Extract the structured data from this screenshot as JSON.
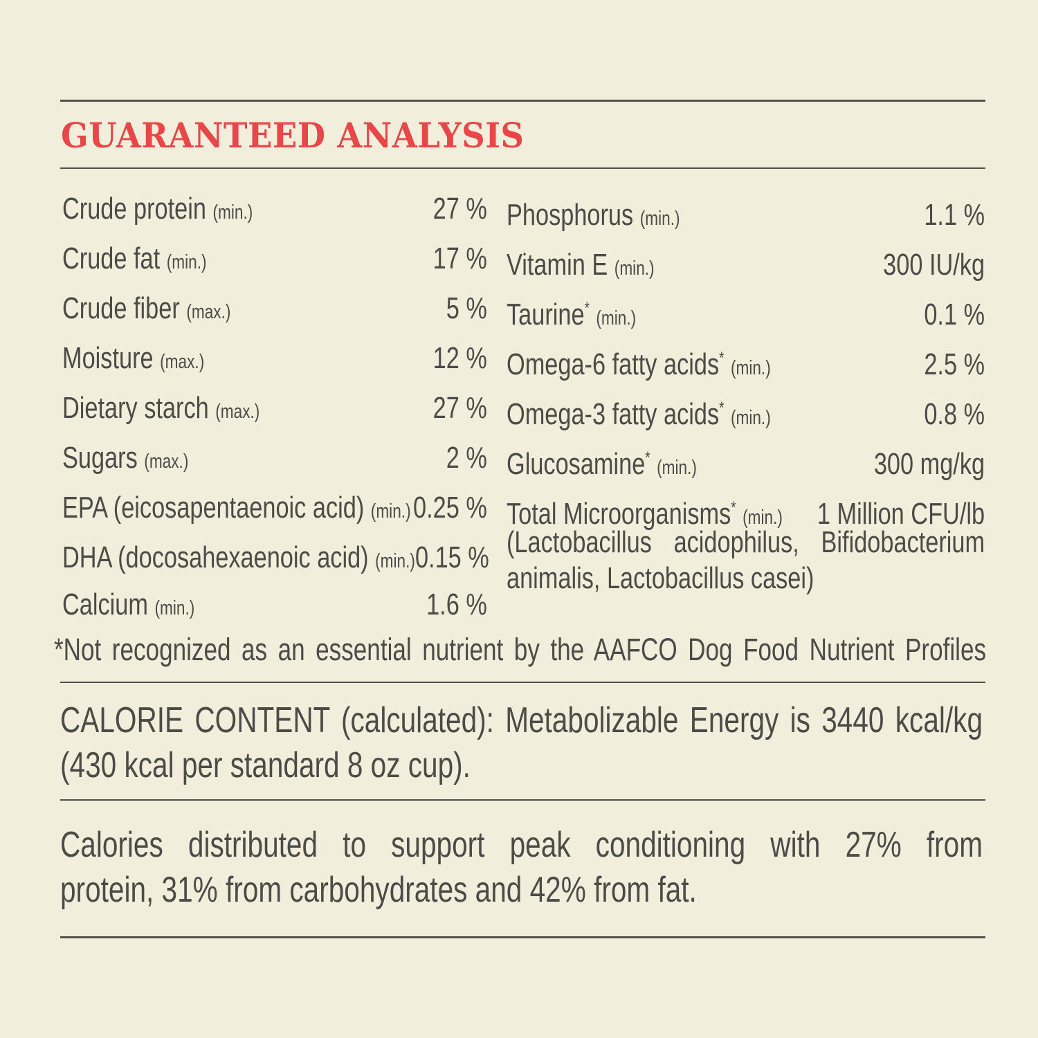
{
  "title": "GUARANTEED ANALYSIS",
  "colors": {
    "background": "#f1efdc",
    "title": "#e8474a",
    "text": "#4b4b48",
    "rule": "#4f504a"
  },
  "left_rows": [
    {
      "name": "Crude protein",
      "qualifier": "(min.)",
      "value": "27 %"
    },
    {
      "name": "Crude fat",
      "qualifier": "(min.)",
      "value": "17 %"
    },
    {
      "name": "Crude fiber",
      "qualifier": "(max.)",
      "value": "5 %"
    },
    {
      "name": "Moisture",
      "qualifier": "(max.)",
      "value": "12 %"
    },
    {
      "name": "Dietary starch",
      "qualifier": "(max.)",
      "value": "27 %"
    },
    {
      "name": "Sugars",
      "qualifier": "(max.)",
      "value": "2 %"
    },
    {
      "name": "EPA (eicosapentaenoic acid)",
      "qualifier": "(min.)",
      "value": "0.25 %"
    },
    {
      "name": "DHA (docosahexaenoic acid)",
      "qualifier": "(min.)",
      "value": "0.15 %"
    },
    {
      "name": "Calcium",
      "qualifier": "(min.)",
      "value": "1.6 %"
    }
  ],
  "right_rows": [
    {
      "name": "Phosphorus",
      "asterisk": "",
      "qualifier": "(min.)",
      "value": "1.1 %"
    },
    {
      "name": "Vitamin E",
      "asterisk": "",
      "qualifier": "(min.)",
      "value": "300 IU/kg"
    },
    {
      "name": "Taurine",
      "asterisk": "*",
      "qualifier": "(min.)",
      "value": "0.1 %"
    },
    {
      "name": "Omega-6 fatty acids",
      "asterisk": "*",
      "qualifier": "(min.)",
      "value": "2.5 %"
    },
    {
      "name": "Omega-3 fatty acids",
      "asterisk": "*",
      "qualifier": "(min.)",
      "value": "0.8 %"
    },
    {
      "name": "Glucosamine",
      "asterisk": "*",
      "qualifier": "(min.)",
      "value": "300 mg/kg"
    },
    {
      "name": "Total Microorganisms",
      "asterisk": "*",
      "qualifier": "(min.)",
      "value": "1 Million CFU/lb"
    }
  ],
  "microorganisms_line1": "(Lactobacillus acidophilus, Bifidobacterium",
  "microorganisms_line2": "animalis, Lactobacillus casei)",
  "footnote": "*Not recognized as an essential nutrient by the AAFCO Dog Food Nutrient Profiles",
  "calorie_line1": "CALORIE CONTENT (calculated): Metabolizable Energy is 3440 kcal/kg",
  "calorie_line2": "(430 kcal per standard 8 oz cup).",
  "distribution_line1": "Calories distributed to support peak conditioning with 27% from",
  "distribution_line2": "protein, 31% from carbohydrates and 42% from fat."
}
